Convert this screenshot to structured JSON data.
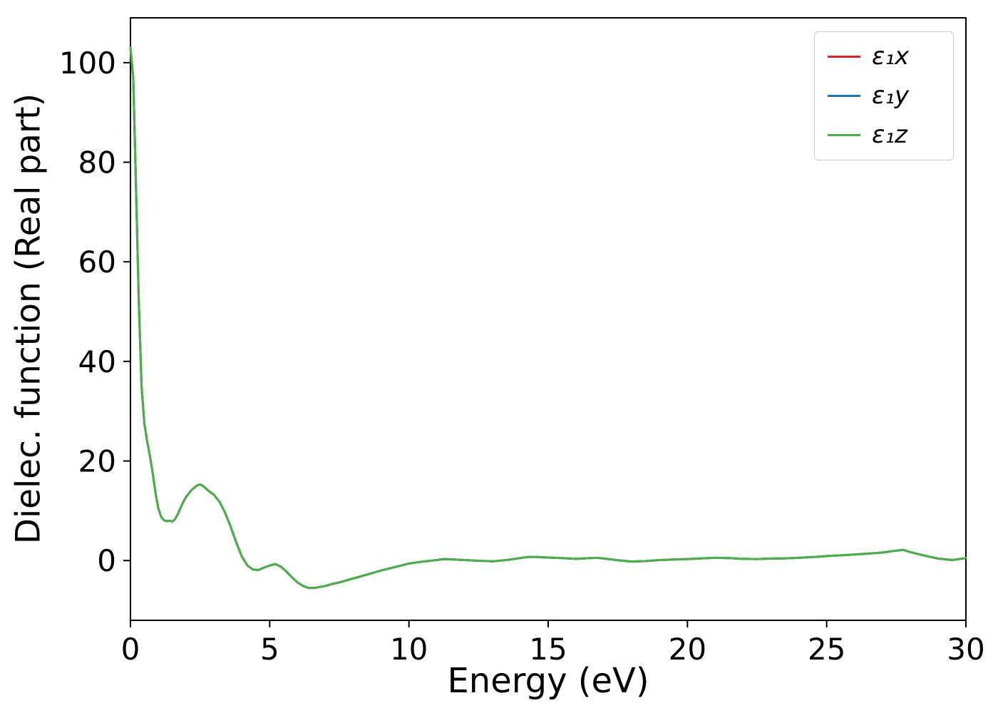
{
  "figure": {
    "background": "#ffffff"
  },
  "chart_data": {
    "type": "line",
    "title": "",
    "xlabel": "Energy (eV)",
    "ylabel": "Dielec. function (Real part)",
    "xlim": [
      0,
      30
    ],
    "ylim": [
      -12,
      109
    ],
    "xticks": [
      0,
      5,
      10,
      15,
      20,
      25,
      30
    ],
    "yticks": [
      0,
      20,
      40,
      60,
      80,
      100
    ],
    "grid": false,
    "legend_position": "upper right",
    "note": "The three components overlap exactly; only the last-drawn green curve (eps1 z) is visible over the full range.",
    "x": [
      0,
      0.1,
      0.2,
      0.3,
      0.4,
      0.5,
      0.6,
      0.7,
      0.8,
      0.9,
      1.0,
      1.1,
      1.2,
      1.3,
      1.4,
      1.5,
      1.6,
      1.7,
      1.8,
      1.9,
      2.0,
      2.2,
      2.4,
      2.5,
      2.6,
      2.8,
      3.0,
      3.2,
      3.4,
      3.6,
      3.8,
      4.0,
      4.2,
      4.4,
      4.6,
      4.8,
      5.0,
      5.2,
      5.4,
      5.6,
      5.8,
      6.0,
      6.2,
      6.4,
      6.6,
      6.8,
      7.0,
      7.25,
      7.5,
      7.75,
      8.0,
      8.5,
      9.0,
      9.5,
      10.0,
      10.5,
      11.0,
      11.25,
      11.5,
      12.0,
      12.5,
      13.0,
      13.5,
      14.0,
      14.25,
      14.5,
      15.0,
      15.5,
      16.0,
      16.5,
      16.75,
      17.0,
      17.5,
      18.0,
      18.5,
      19.0,
      19.5,
      20.0,
      20.5,
      21.0,
      21.5,
      22.0,
      22.5,
      23.0,
      23.5,
      24.0,
      24.5,
      25.0,
      25.5,
      26.0,
      26.5,
      27.0,
      27.5,
      27.75,
      28.0,
      28.5,
      29.0,
      29.5,
      30.0
    ],
    "shared_values": [
      103,
      97,
      75,
      52,
      35,
      27.5,
      24,
      21,
      17.5,
      13.5,
      10.5,
      8.8,
      8.1,
      7.9,
      8.0,
      7.8,
      8.3,
      9.3,
      10.6,
      11.8,
      12.8,
      14.2,
      15.1,
      15.3,
      15.0,
      14.0,
      13.2,
      11.8,
      9.6,
      6.8,
      3.6,
      0.8,
      -1.0,
      -1.8,
      -1.9,
      -1.4,
      -1.0,
      -0.7,
      -1.2,
      -2.2,
      -3.4,
      -4.4,
      -5.1,
      -5.5,
      -5.5,
      -5.3,
      -5.1,
      -4.7,
      -4.4,
      -4.0,
      -3.6,
      -2.8,
      -2.0,
      -1.3,
      -0.6,
      -0.2,
      0.1,
      0.3,
      0.25,
      0.1,
      -0.05,
      -0.15,
      0.1,
      0.5,
      0.7,
      0.75,
      0.6,
      0.5,
      0.35,
      0.5,
      0.55,
      0.4,
      0.05,
      -0.2,
      -0.1,
      0.1,
      0.2,
      0.3,
      0.45,
      0.55,
      0.5,
      0.35,
      0.3,
      0.4,
      0.45,
      0.55,
      0.7,
      0.9,
      1.05,
      1.2,
      1.4,
      1.6,
      2.0,
      2.15,
      1.7,
      1.0,
      0.4,
      0.1,
      0.5
    ],
    "series": [
      {
        "label": "ε₁x",
        "name_plain": "eps1x",
        "color": "#d62728",
        "values": "same-as-shared"
      },
      {
        "label": "ε₁y",
        "name_plain": "eps1y",
        "color": "#1f77b4",
        "values": "same-as-shared"
      },
      {
        "label": "ε₁z",
        "name_plain": "eps1z",
        "color": "#4daf4a",
        "values": "same-as-shared"
      }
    ]
  }
}
